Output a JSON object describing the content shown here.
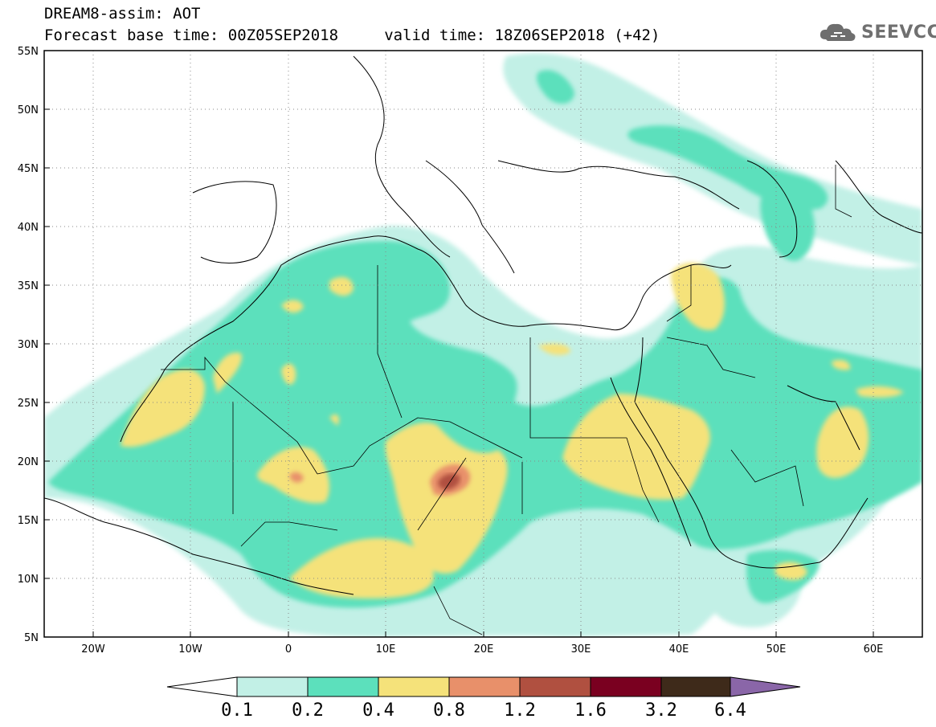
{
  "header": {
    "title_line1": "DREAM8-assim: AOT",
    "title_line2": "Forecast base time: 00Z05SEP2018     valid time: 18Z06SEP2018 (+42)"
  },
  "logo": {
    "text": "SEEVCCC",
    "icon": "cloud-icon"
  },
  "map": {
    "lat_labels": [
      "55N",
      "50N",
      "45N",
      "40N",
      "35N",
      "30N",
      "25N",
      "20N",
      "15N",
      "10N",
      "5N"
    ],
    "lon_labels": [
      "20W",
      "10W",
      "0",
      "10E",
      "20E",
      "30E",
      "40E",
      "50E",
      "60E"
    ],
    "lat_range": [
      5,
      55
    ],
    "lon_range": [
      -25,
      65
    ],
    "grid": "dotted"
  },
  "colorbar": {
    "levels": [
      "0.1",
      "0.2",
      "0.4",
      "0.8",
      "1.2",
      "1.6",
      "3.2",
      "6.4"
    ],
    "colors": [
      "#ffffff",
      "#c2f0e6",
      "#5ce0bc",
      "#f5e27a",
      "#e8906a",
      "#b05040",
      "#7a0020",
      "#3e2a1a",
      "#8a66a8"
    ]
  }
}
